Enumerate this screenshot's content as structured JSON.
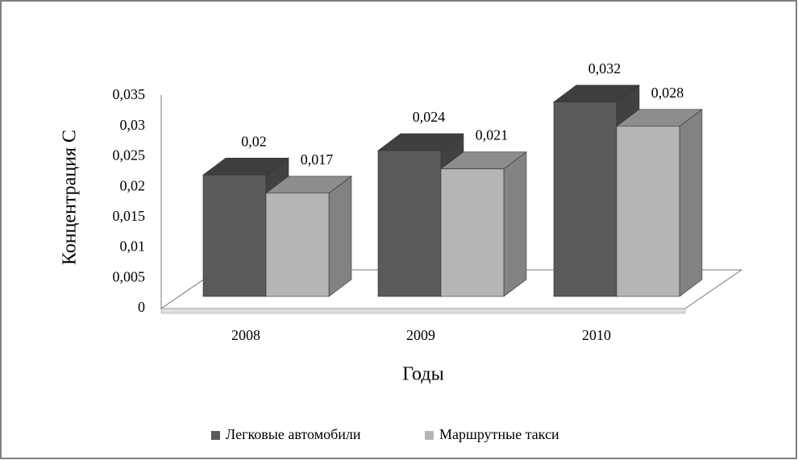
{
  "chart_data": {
    "type": "bar3d",
    "y_label": "Концентрация С",
    "x_label": "Годы",
    "categories": [
      "2008",
      "2009",
      "2010"
    ],
    "series": [
      {
        "name": "Легковые автомобили",
        "color": "#5a5a5a",
        "values": [
          0.02,
          0.024,
          0.032
        ],
        "value_labels": [
          "0,02",
          "0,024",
          "0,032"
        ]
      },
      {
        "name": "Маршрутные такси",
        "color": "#b5b5b5",
        "values": [
          0.017,
          0.021,
          0.028
        ],
        "value_labels": [
          "0,017",
          "0,021",
          "0,028"
        ]
      }
    ],
    "ylim": [
      0,
      0.035
    ],
    "yticks": [
      0,
      {
        "value": 0.005,
        "label": "0,005"
      },
      {
        "value": 0.01,
        "label": "0,01"
      },
      {
        "value": 0.015,
        "label": "0,015"
      },
      {
        "value": 0.02,
        "label": "0,02"
      },
      {
        "value": 0.025,
        "label": "0,025"
      },
      {
        "value": 0.03,
        "label": "0,03"
      },
      {
        "value": 0.035,
        "label": "0,035"
      }
    ],
    "legend": "bottom"
  }
}
